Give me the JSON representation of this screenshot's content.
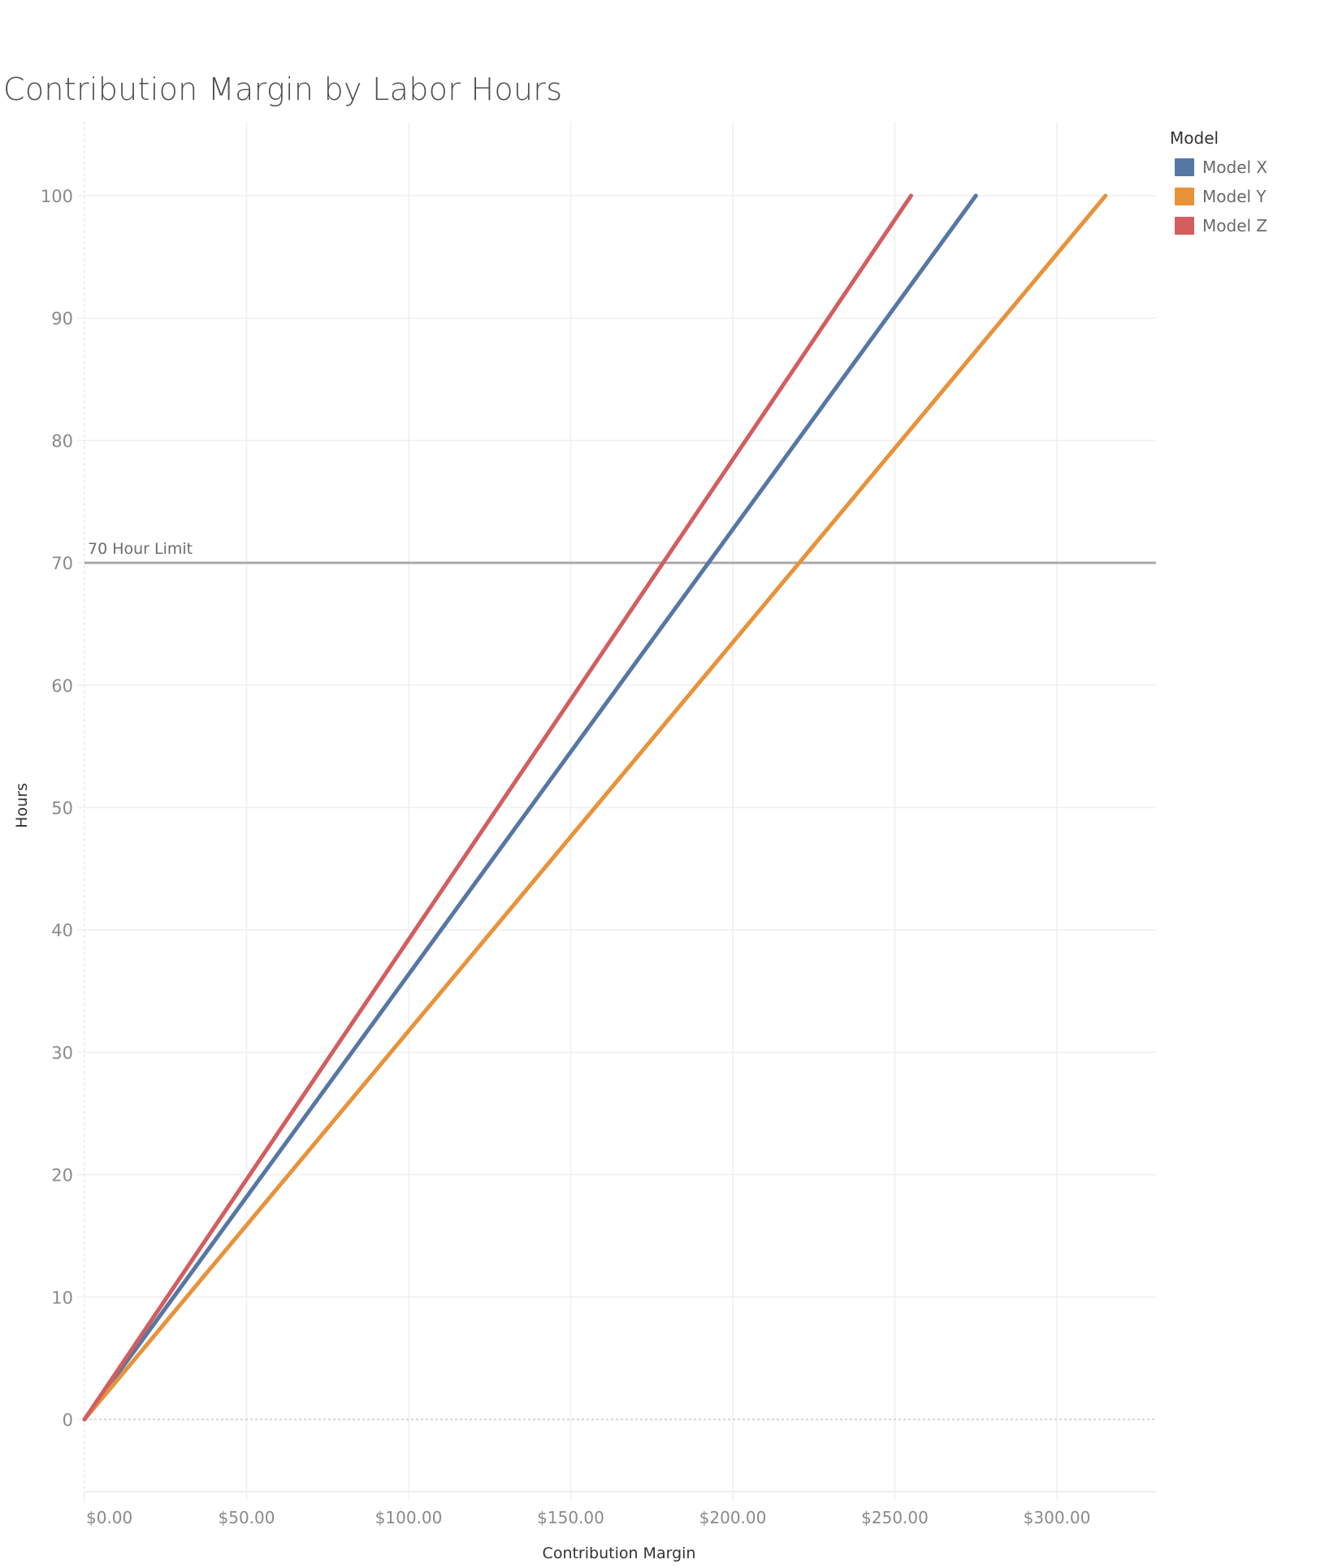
{
  "title": "Contribution Margin by Labor Hours",
  "legend": {
    "title": "Model",
    "items": [
      {
        "label": "Model X",
        "color": "#5677A4"
      },
      {
        "label": "Model Y",
        "color": "#E8923A"
      },
      {
        "label": "Model Z",
        "color": "#D35D5F"
      }
    ]
  },
  "reference_line": {
    "value": 70,
    "label": "70 Hour Limit",
    "color": "#a9a9a9"
  },
  "chart_data": {
    "type": "line",
    "title": "Contribution Margin by Labor Hours",
    "xlabel": "Contribution Margin",
    "ylabel": "Hours",
    "xlim": [
      -6,
      332
    ],
    "ylim": [
      -6,
      106
    ],
    "x_ticks": [
      0,
      50,
      100,
      150,
      200,
      250,
      300
    ],
    "x_tick_labels": [
      "$0.00",
      "$50.00",
      "$100.00",
      "$150.00",
      "$200.00",
      "$250.00",
      "$300.00"
    ],
    "y_ticks": [
      0,
      10,
      20,
      30,
      40,
      50,
      60,
      70,
      80,
      90,
      100
    ],
    "y_tick_labels": [
      "0",
      "10",
      "20",
      "30",
      "40",
      "50",
      "60",
      "70",
      "80",
      "90",
      "100"
    ],
    "grid": true,
    "legend_position": "right",
    "legend_title": "Model",
    "series": [
      {
        "name": "Model X",
        "color": "#5677A4",
        "points": [
          [
            0,
            0
          ],
          [
            275,
            100
          ]
        ]
      },
      {
        "name": "Model Y",
        "color": "#E8923A",
        "points": [
          [
            0,
            0
          ],
          [
            315,
            100
          ]
        ]
      },
      {
        "name": "Model Z",
        "color": "#D35D5F",
        "points": [
          [
            0,
            0
          ],
          [
            255,
            100
          ]
        ]
      }
    ],
    "annotations": [
      {
        "type": "reference_line",
        "axis": "y",
        "value": 70,
        "label": "70 Hour Limit"
      }
    ]
  }
}
